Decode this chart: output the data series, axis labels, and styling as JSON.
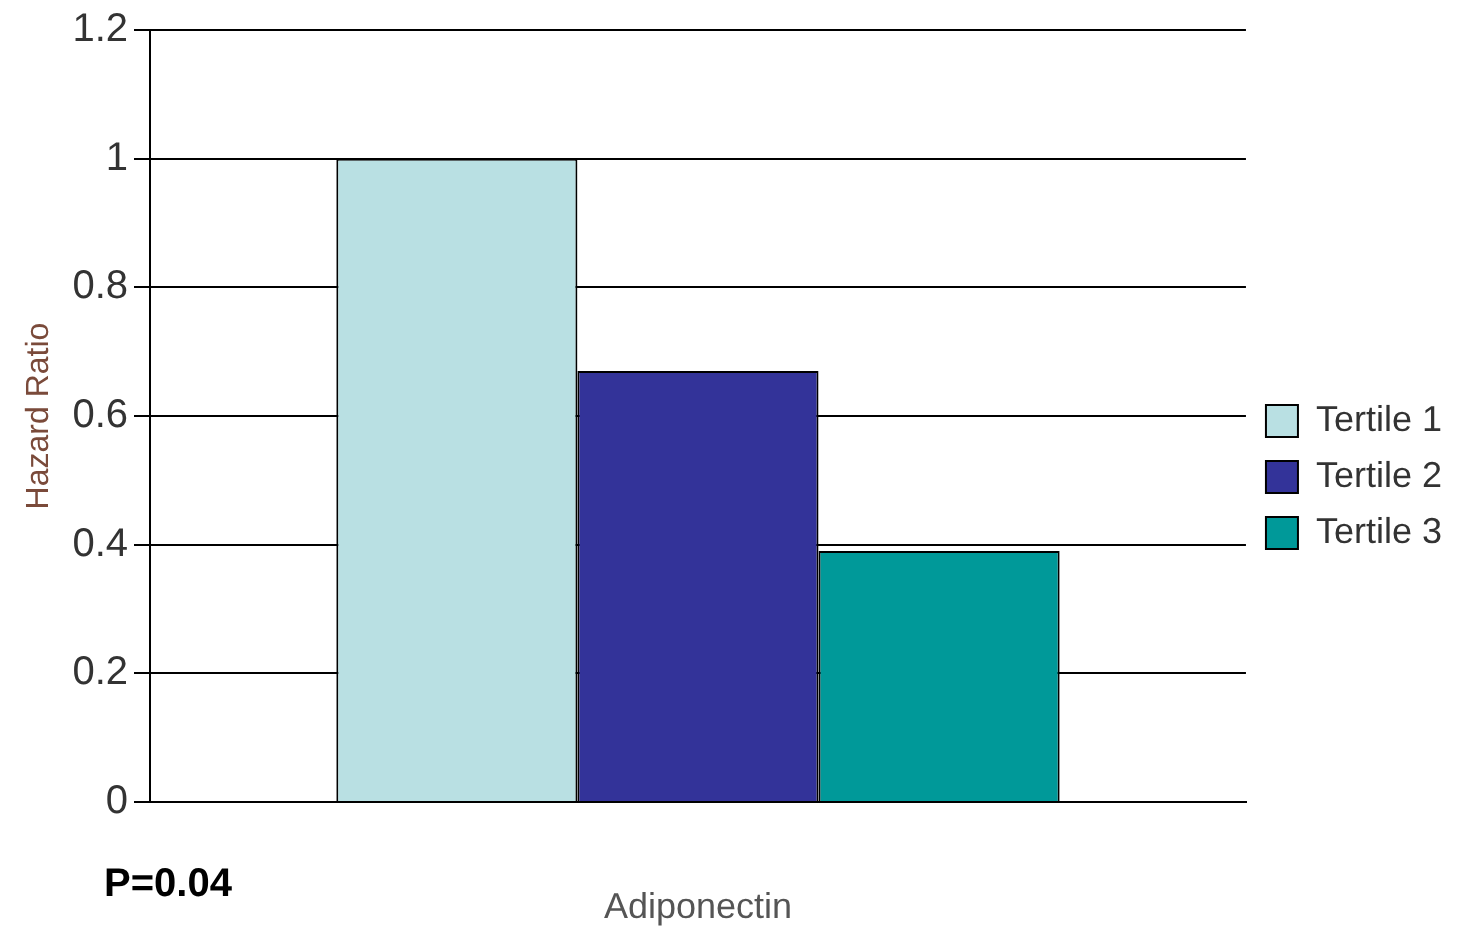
{
  "chart_data": {
    "type": "bar",
    "xlabel": "Adiponectin",
    "ylabel": "Hazard Ratio",
    "categories": [
      null
    ],
    "series": [
      {
        "name": "Tertile 1",
        "color": "#b9e0e3",
        "values": [
          1.0
        ]
      },
      {
        "name": "Tertile 2",
        "color": "#333399",
        "values": [
          0.67
        ]
      },
      {
        "name": "Tertile 3",
        "color": "#009999",
        "values": [
          0.39
        ]
      }
    ],
    "ylim": [
      0,
      1.2
    ],
    "yticks": [
      0,
      0.2,
      0.4,
      0.6,
      0.8,
      1,
      1.2
    ],
    "grid": "y",
    "legend": "right",
    "annotations": [
      "P=0.04"
    ]
  }
}
